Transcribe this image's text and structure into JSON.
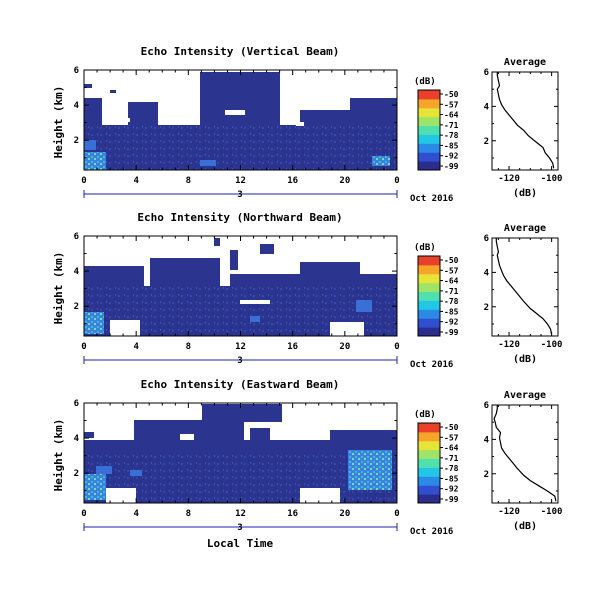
{
  "colors": {
    "background": "#ffffff",
    "echo_fill": "#2b3590",
    "no_data": "#ffffff",
    "profile_line": "#000000",
    "date_axis": "#2020b0",
    "colorbar": [
      "#2c2c8c",
      "#2f4fd0",
      "#2b8ae6",
      "#22c7e6",
      "#4fe0b0",
      "#9de468",
      "#e6e436",
      "#f6a42a",
      "#e8402a"
    ]
  },
  "shared": {
    "x_ticks": [
      "0",
      "4",
      "8",
      "12",
      "16",
      "20",
      "0"
    ],
    "x_range": [
      0,
      24
    ],
    "y_ticks": [
      "2",
      "4",
      "6"
    ],
    "y_range": [
      0.3,
      6
    ],
    "ylabel": "Height (km)",
    "xlabel": "Local Time",
    "date_center": "3",
    "date_label": "Oct 2016",
    "colorbar_unit": "(dB)",
    "colorbar_ticks": [
      "-50",
      "-57",
      "-64",
      "-71",
      "-78",
      "-85",
      "-92",
      "-99"
    ],
    "profile_title": "Average",
    "profile_xlabel": "(dB)",
    "profile_x_ticks": [
      "-120",
      "-100"
    ],
    "profile_x_range": [
      -128,
      -97
    ],
    "profile_y_ticks": [
      "2",
      "4",
      "6"
    ]
  },
  "chart_data": [
    {
      "type": "heatmap",
      "title": "Echo Intensity (Vertical Beam)",
      "profile": {
        "type": "line",
        "dB": [
          -99,
          -99.5,
          -101,
          -103,
          -104,
          -107,
          -111,
          -113,
          -116,
          -118,
          -120,
          -122,
          -123.5,
          -124.5,
          -125,
          -125.5,
          -124.5,
          -125,
          -125.5,
          -125.5
        ],
        "height_km": [
          0.4,
          0.7,
          1.0,
          1.3,
          1.6,
          1.9,
          2.3,
          2.6,
          2.9,
          3.2,
          3.5,
          3.8,
          4.1,
          4.4,
          4.7,
          5.0,
          5.2,
          5.5,
          5.8,
          6.0
        ]
      }
    },
    {
      "type": "heatmap",
      "title": "Echo Intensity (Northward Beam)",
      "profile": {
        "type": "line",
        "dB": [
          -100,
          -100.5,
          -102,
          -104,
          -107,
          -110,
          -113,
          -115,
          -117,
          -119,
          -121,
          -122.5,
          -123.5,
          -124.5,
          -125,
          -125.5,
          -125,
          -125.5,
          -126,
          -126
        ],
        "height_km": [
          0.4,
          0.7,
          1.0,
          1.3,
          1.6,
          1.9,
          2.3,
          2.6,
          2.9,
          3.2,
          3.5,
          3.8,
          4.1,
          4.4,
          4.7,
          5.0,
          5.2,
          5.5,
          5.8,
          6.0
        ]
      }
    },
    {
      "type": "heatmap",
      "title": "Echo Intensity (Eastward Beam)",
      "profile": {
        "type": "line",
        "dB": [
          -98,
          -98.5,
          -102,
          -106,
          -110,
          -113,
          -116,
          -118,
          -120,
          -122,
          -123.5,
          -124,
          -124.5,
          -124,
          -126,
          -126.5,
          -127,
          -126,
          -125.5,
          -125.5
        ],
        "height_km": [
          0.4,
          0.7,
          1.0,
          1.3,
          1.6,
          1.9,
          2.3,
          2.6,
          2.9,
          3.2,
          3.5,
          3.8,
          4.1,
          4.4,
          4.7,
          5.0,
          5.2,
          5.5,
          5.8,
          6.0
        ]
      }
    }
  ]
}
